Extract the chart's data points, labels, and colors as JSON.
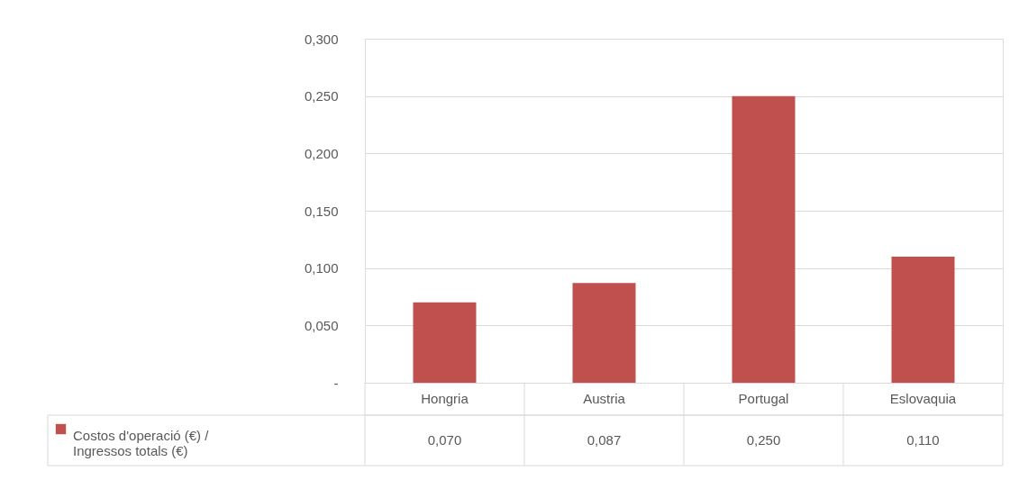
{
  "chart_data": {
    "type": "bar",
    "categories": [
      "Hongria",
      "Austria",
      "Portugal",
      "Eslovaquia"
    ],
    "series": [
      {
        "name": "Costos d'operació (€) / Ingressos totals (€)",
        "color": "#c0504d",
        "values": [
          0.07,
          0.087,
          0.25,
          0.11
        ],
        "value_labels": [
          "0,070",
          "0,087",
          "0,250",
          "0,110"
        ]
      }
    ],
    "ylim": [
      0,
      0.3
    ],
    "yticks": [
      {
        "value": 0,
        "label": "-"
      },
      {
        "value": 0.05,
        "label": "0,050"
      },
      {
        "value": 0.1,
        "label": "0,100"
      },
      {
        "value": 0.15,
        "label": "0,150"
      },
      {
        "value": 0.2,
        "label": "0,200"
      },
      {
        "value": 0.25,
        "label": "0,250"
      },
      {
        "value": 0.3,
        "label": "0,300"
      }
    ],
    "grid": "y",
    "legend": "bottom"
  }
}
